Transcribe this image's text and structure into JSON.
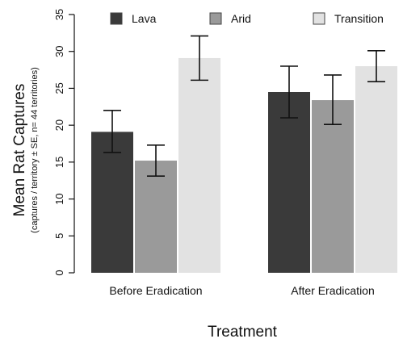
{
  "chart_data": {
    "type": "bar",
    "categories": [
      "Before Eradication",
      "After Eradication"
    ],
    "series": [
      {
        "name": "Lava",
        "color": "#3a3a3a",
        "values": [
          19.1,
          24.5
        ],
        "err_low": [
          16.3,
          21.0
        ],
        "err_high": [
          22.0,
          28.0
        ]
      },
      {
        "name": "Arid",
        "color": "#9a9a9a",
        "values": [
          15.2,
          23.4
        ],
        "err_low": [
          13.1,
          20.1
        ],
        "err_high": [
          17.3,
          26.8
        ]
      },
      {
        "name": "Transition",
        "color": "#e2e2e2",
        "values": [
          29.1,
          28.0
        ],
        "err_low": [
          26.1,
          25.9
        ],
        "err_high": [
          32.1,
          30.1
        ]
      }
    ],
    "ylim": [
      0,
      35
    ],
    "yticks": [
      "0",
      "5",
      "10",
      "15",
      "20",
      "25",
      "30",
      "35"
    ],
    "ylabel": "Mean Rat Captures",
    "ylabel_sub": "(captures / territory ± SE, n= 44 territories)",
    "xlabel": "Treatment",
    "legend_position": "top",
    "grid": false
  }
}
